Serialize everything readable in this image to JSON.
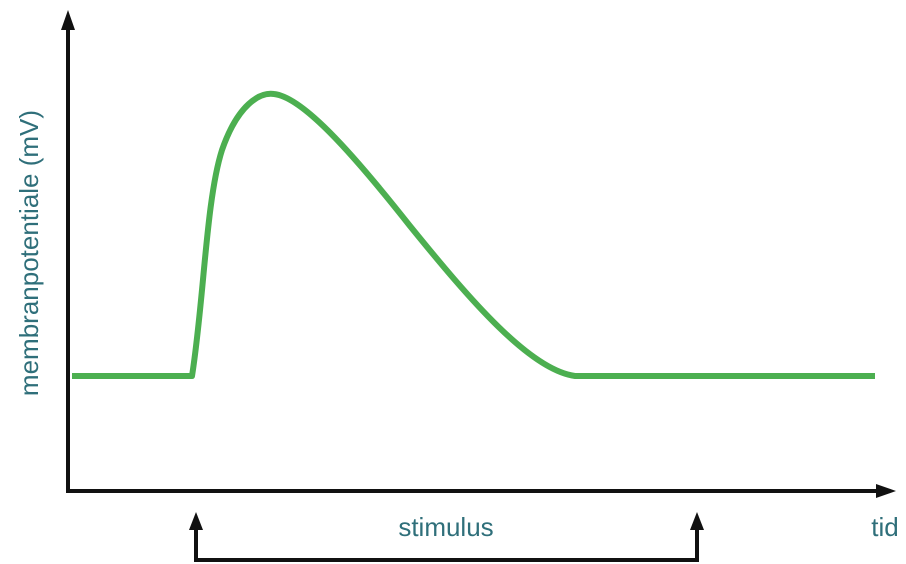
{
  "diagram": {
    "y_axis_label": "membranpotentiale (mV)",
    "x_axis_label": "tid",
    "stimulus_label": "stimulus"
  },
  "colors": {
    "curve": "#4caf50",
    "axis": "#111111",
    "label_text": "#2f6f7a",
    "background": "#ffffff"
  },
  "icons": {
    "y_axis_arrow": "arrow-up-icon",
    "x_axis_arrow": "arrow-right-icon",
    "stimulus_start_arrow": "arrow-up-icon",
    "stimulus_end_arrow": "arrow-up-icon"
  }
}
